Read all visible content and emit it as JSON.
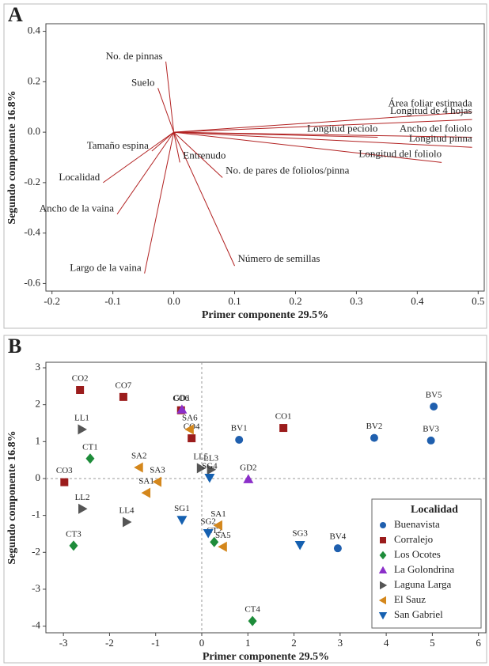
{
  "chart_data": [
    {
      "type": "biplot",
      "panel": "A",
      "x_label": "Primer componente 29.5%",
      "y_label": "Segundo componente 16.8%",
      "xlim": [
        -0.21,
        0.51
      ],
      "ylim": [
        -0.63,
        0.43
      ],
      "xticks": [
        -0.2,
        -0.1,
        {
          "value": 0,
          "label": "0.0"
        },
        0.1,
        0.2,
        0.3,
        0.4,
        0.5
      ],
      "yticks": [
        0.4,
        0.2,
        {
          "value": 0,
          "label": "0.0"
        },
        -0.2,
        -0.4,
        -0.6
      ],
      "color": "#b22222",
      "vectors": [
        {
          "label": "Área foliar estimada",
          "x": 0.49,
          "y": 0.08
        },
        {
          "label": "Longitud de 4 hojas",
          "x": 0.49,
          "y": 0.05
        },
        {
          "label": "Ancho del foliolo",
          "x": 0.49,
          "y": -0.02
        },
        {
          "label": "Longitud pinna",
          "x": 0.49,
          "y": -0.06
        },
        {
          "label": "Longitud del foliolo",
          "x": 0.44,
          "y": -0.12
        },
        {
          "label": "Longitud peciolo",
          "x": 0.335,
          "y": -0.02
        },
        {
          "label": "No. de pares de foliolos/pinna",
          "x": 0.08,
          "y": -0.18
        },
        {
          "label": "Número de semillas",
          "x": 0.1,
          "y": -0.53
        },
        {
          "label": "Largo de la vaina",
          "x": -0.048,
          "y": -0.56
        },
        {
          "label": "Ancho de la vaina",
          "x": -0.093,
          "y": -0.325
        },
        {
          "label": "Localidad",
          "x": -0.116,
          "y": -0.2
        },
        {
          "label": "Tamaño espina",
          "x": -0.036,
          "y": -0.075
        },
        {
          "label": "Entrenudo",
          "x": 0.01,
          "y": -0.12
        },
        {
          "label": "Suelo",
          "x": -0.026,
          "y": 0.175
        },
        {
          "label": "No. de pinnas",
          "x": -0.013,
          "y": 0.28
        }
      ]
    },
    {
      "type": "scatter",
      "panel": "B",
      "x_label": "Primer componente 29.5%",
      "y_label": "Segundo componente 16.8%",
      "xlim": [
        -3.38,
        6.16
      ],
      "ylim": [
        -4.18,
        3.15
      ],
      "xticks": [
        -3,
        -2,
        -1,
        0,
        1,
        2,
        3,
        4,
        5,
        6
      ],
      "yticks": [
        3,
        2,
        1,
        0,
        -1,
        -2,
        -3,
        -4
      ],
      "zero_lines": true,
      "legend_title": "Localidad",
      "legend_position": "lower-right",
      "series": [
        {
          "name": "Buenavista",
          "color": "#1f5fae",
          "marker": "circle",
          "labels": [
            "BV1",
            "BV2",
            "BV3",
            "BV5",
            "BV4"
          ],
          "x": [
            0.81,
            3.74,
            4.97,
            5.03,
            2.95
          ],
          "y": [
            1.05,
            1.1,
            1.03,
            1.95,
            -1.89
          ]
        },
        {
          "name": "Corralejo",
          "color": "#9b1c1c",
          "marker": "square",
          "labels": [
            "CO2",
            "CO7",
            "CO6",
            "CO4",
            "CO1",
            "CO3"
          ],
          "x": [
            -2.64,
            -1.7,
            -0.45,
            -0.22,
            1.77,
            -2.98
          ],
          "y": [
            2.4,
            2.21,
            1.85,
            1.09,
            1.37,
            -0.1
          ]
        },
        {
          "name": "Los Ocotes",
          "color": "#1e8c3a",
          "marker": "diamond",
          "labels": [
            "CT1",
            "CT3",
            "CT2",
            "CT4"
          ],
          "x": [
            -2.42,
            -2.78,
            0.27,
            1.1
          ],
          "y": [
            0.54,
            -1.82,
            -1.72,
            -3.86
          ]
        },
        {
          "name": "La Golondrina",
          "color": "#8b2fc9",
          "marker": "triangle-up",
          "labels": [
            "GD1",
            "GD2"
          ],
          "x": [
            -0.43,
            1.01
          ],
          "y": [
            1.87,
            -0.02
          ]
        },
        {
          "name": "Laguna Larga",
          "color": "#555555",
          "marker": "triangle-right",
          "labels": [
            "LL1",
            "LL2",
            "LL4",
            "LL5",
            "LL3"
          ],
          "x": [
            -2.6,
            -2.59,
            -1.63,
            -0.02,
            0.2
          ],
          "y": [
            1.33,
            -0.82,
            -1.18,
            0.28,
            0.24
          ]
        },
        {
          "name": "El Sauz",
          "color": "#d4871c",
          "marker": "triangle-left",
          "labels": [
            "SA6",
            "SA2",
            "SA3",
            "SA1",
            "SA1",
            "SA5"
          ],
          "x": [
            -0.26,
            -1.36,
            -0.96,
            -1.2,
            0.36,
            0.46
          ],
          "y": [
            1.33,
            0.3,
            -0.09,
            -0.39,
            -1.27,
            -1.85
          ]
        },
        {
          "name": "San Gabriel",
          "color": "#1560b0",
          "marker": "triangle-down",
          "labels": [
            "SG4",
            "SG1",
            "SG2",
            "SG3"
          ],
          "x": [
            0.17,
            -0.43,
            0.14,
            2.13
          ],
          "y": [
            0.02,
            -1.12,
            -1.48,
            -1.8
          ]
        }
      ]
    }
  ]
}
